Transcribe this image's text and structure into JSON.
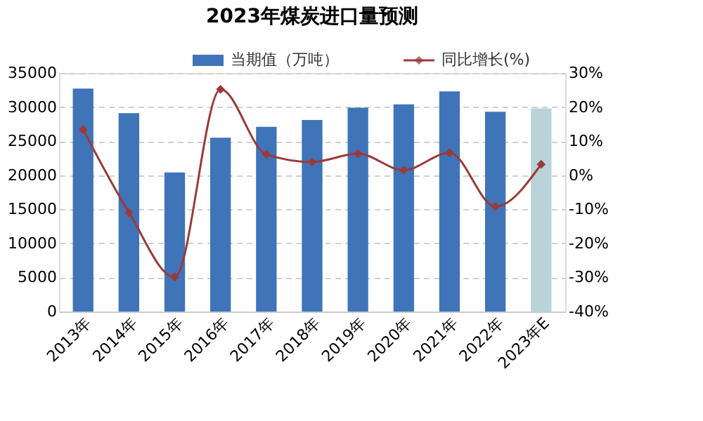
{
  "chart_data": {
    "type": "bar",
    "title": "2023年煤炭进口量预测",
    "categories": [
      "2013年",
      "2014年",
      "2015年",
      "2016年",
      "2017年",
      "2018年",
      "2019年",
      "2020年",
      "2021年",
      "2022年",
      "2023年E"
    ],
    "series": [
      {
        "name": "当期值（万吨）",
        "color": "#3f74b8",
        "colors": [
          "#3f74b8",
          "#3f74b8",
          "#3f74b8",
          "#3f74b8",
          "#3f74b8",
          "#3f74b8",
          "#3f74b8",
          "#3f74b8",
          "#3f74b8",
          "#3f74b8",
          "#b9d3d9"
        ],
        "values": [
          32700,
          29100,
          20400,
          25500,
          27100,
          28100,
          29900,
          30400,
          32300,
          29300,
          29800
        ]
      },
      {
        "name": "同比增长(%)",
        "type": "line",
        "axis": "y2",
        "color": "#9b3a3a",
        "values": [
          13.4,
          -10.9,
          -29.9,
          25.2,
          6.1,
          3.9,
          6.3,
          1.5,
          6.6,
          -9.2,
          3.2
        ]
      }
    ],
    "ylim": [
      0,
      35000
    ],
    "yticks": [
      0,
      5000,
      10000,
      15000,
      20000,
      25000,
      30000,
      35000
    ],
    "y2lim": [
      -40,
      30
    ],
    "y2ticks": [
      {
        "value": -40,
        "label": "-40%"
      },
      {
        "value": -30,
        "label": "-30%"
      },
      {
        "value": -20,
        "label": "-20%"
      },
      {
        "value": -10,
        "label": "-10%"
      },
      {
        "value": 0,
        "label": "0%"
      },
      {
        "value": 10,
        "label": "10%"
      },
      {
        "value": 20,
        "label": "20%"
      },
      {
        "value": 30,
        "label": "30%"
      }
    ],
    "grid": "y",
    "legend": "top",
    "marker": "diamond",
    "line_style": "solid"
  }
}
